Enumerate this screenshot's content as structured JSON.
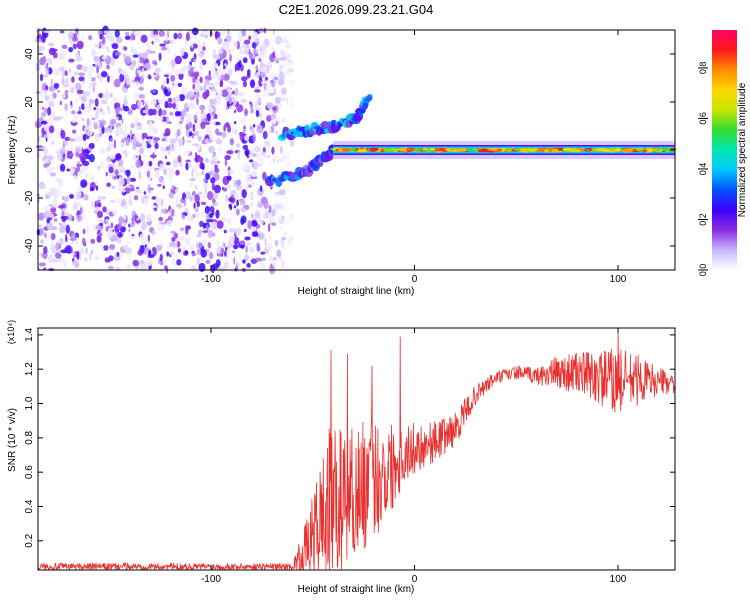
{
  "chart_data": [
    {
      "type": "heatmap",
      "title": "C2E1.2026.099.23.21.G04",
      "xlabel": "Height of straight line (km)",
      "ylabel": "Frequency (Hz)",
      "xlim": [
        -185,
        128
      ],
      "ylim": [
        -50,
        50
      ],
      "xticks": [
        -100,
        0,
        100
      ],
      "yticks": [
        -40,
        -20,
        0,
        20,
        40
      ],
      "colorbar": {
        "label": "Normalized spectral amplitude",
        "range": [
          0,
          0.95
        ],
        "ticks": [
          0.0,
          0.2,
          0.4,
          0.6,
          0.8
        ],
        "tick_labels": [
          "0.0",
          "0.2",
          "0.4",
          "0.6",
          "0.8"
        ],
        "colormap": [
          "#ffffff",
          "#c8b4ff",
          "#8a2be2",
          "#3c00ff",
          "#0050ff",
          "#00c8ff",
          "#00e6b4",
          "#32dc32",
          "#c8e600",
          "#ffd700",
          "#ff8c00",
          "#ff1a1a",
          "#ff0064"
        ]
      },
      "regions": [
        {
          "name": "noise",
          "x": [
            -185,
            -60
          ],
          "freq_range": [
            -50,
            50
          ],
          "amplitude": "0.05-0.25"
        },
        {
          "name": "upper branch",
          "x": [
            -65,
            -22
          ],
          "freq": [
            6,
            8,
            9,
            10,
            11,
            14,
            23
          ],
          "amplitude": "0.2-0.5"
        },
        {
          "name": "lower branch",
          "x": [
            -72,
            -45
          ],
          "freq": [
            -13,
            -11,
            -8,
            -5,
            -2,
            0
          ],
          "amplitude": "0.2-0.4"
        },
        {
          "name": "carrier",
          "x": [
            -40,
            128
          ],
          "freq": 0,
          "amplitude": "0.6-0.9"
        }
      ]
    },
    {
      "type": "line",
      "xlabel": "Height of straight line (km)",
      "ylabel": "SNR (10 * v/v)",
      "y_multiplier": "(x10⁴)",
      "xlim": [
        -185,
        128
      ],
      "ylim": [
        0.03,
        1.44
      ],
      "xticks": [
        -100,
        0,
        100
      ],
      "yticks": [
        0.2,
        0.4,
        0.6,
        0.8,
        1.0,
        1.2,
        1.4
      ],
      "ytick_labels": [
        "0.2",
        "0.4",
        "0.6",
        "0.8",
        "1.0",
        "1.2",
        "1.4"
      ],
      "series": [
        {
          "name": "SNR",
          "color": "#e8302e",
          "envelope": {
            "x": [
              -185,
              -140,
              -100,
              -70,
              -60,
              -52,
              -43,
              -35,
              -25,
              -15,
              -5,
              0,
              10,
              20,
              30,
              40,
              50,
              60,
              70,
              80,
              90,
              100,
              110,
              120,
              128
            ],
            "mean": [
              0.05,
              0.05,
              0.05,
              0.05,
              0.05,
              0.18,
              0.4,
              0.45,
              0.52,
              0.6,
              0.7,
              0.74,
              0.78,
              0.85,
              1.05,
              1.15,
              1.18,
              1.16,
              1.18,
              1.18,
              1.15,
              1.13,
              1.14,
              1.13,
              1.12
            ],
            "spread": [
              0.02,
              0.02,
              0.02,
              0.02,
              0.02,
              0.18,
              0.45,
              0.42,
              0.38,
              0.32,
              0.18,
              0.15,
              0.12,
              0.1,
              0.06,
              0.04,
              0.04,
              0.05,
              0.1,
              0.12,
              0.16,
              0.2,
              0.15,
              0.08,
              0.06
            ]
          },
          "peaks": [
            {
              "x": -41,
              "y": 1.31
            },
            {
              "x": -33,
              "y": 1.29
            },
            {
              "x": -21,
              "y": 1.22
            },
            {
              "x": -7,
              "y": 1.39
            },
            {
              "x": 100,
              "y": 1.43
            }
          ]
        }
      ]
    }
  ]
}
